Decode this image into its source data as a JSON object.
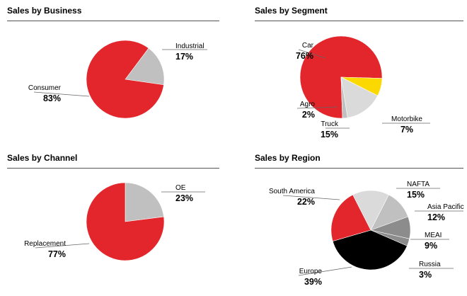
{
  "colors": {
    "red": "#e2262b",
    "grey": "#c0c0c0",
    "light_grey": "#dadada",
    "yellow": "#fbd900",
    "black": "#000000",
    "dark_grey": "#8c8c8c",
    "rule": "#555555"
  },
  "chart_data": [
    {
      "type": "pie",
      "title": "Sales by Business",
      "slices": [
        {
          "name": "Industrial",
          "label": "17%",
          "value": 17,
          "color": "grey"
        },
        {
          "name": "Consumer",
          "label": "83%",
          "value": 83,
          "color": "red"
        }
      ]
    },
    {
      "type": "pie",
      "title": "Sales by Segment",
      "slices": [
        {
          "name": "Car",
          "label": "76%",
          "value": 76,
          "color": "red"
        },
        {
          "name": "Motorbike",
          "label": "7%",
          "value": 7,
          "color": "yellow"
        },
        {
          "name": "Truck",
          "label": "15%",
          "value": 15,
          "color": "light_grey"
        },
        {
          "name": "Agro",
          "label": "2%",
          "value": 2,
          "color": "grey"
        }
      ]
    },
    {
      "type": "pie",
      "title": "Sales by Channel",
      "slices": [
        {
          "name": "OE",
          "label": "23%",
          "value": 23,
          "color": "grey"
        },
        {
          "name": "Replacement",
          "label": "77%",
          "value": 77,
          "color": "red"
        }
      ]
    },
    {
      "type": "pie",
      "title": "Sales by Region",
      "slices": [
        {
          "name": "NAFTA",
          "label": "15%",
          "value": 15,
          "color": "light_grey"
        },
        {
          "name": "Asia Pacific",
          "label": "12%",
          "value": 12,
          "color": "grey"
        },
        {
          "name": "MEAI",
          "label": "9%",
          "value": 9,
          "color": "dark_grey"
        },
        {
          "name": "Russia",
          "label": "3%",
          "value": 3,
          "color": "dark_grey"
        },
        {
          "name": "Europe",
          "label": "39%",
          "value": 39,
          "color": "black"
        },
        {
          "name": "South America",
          "label": "22%",
          "value": 22,
          "color": "red"
        }
      ]
    }
  ]
}
